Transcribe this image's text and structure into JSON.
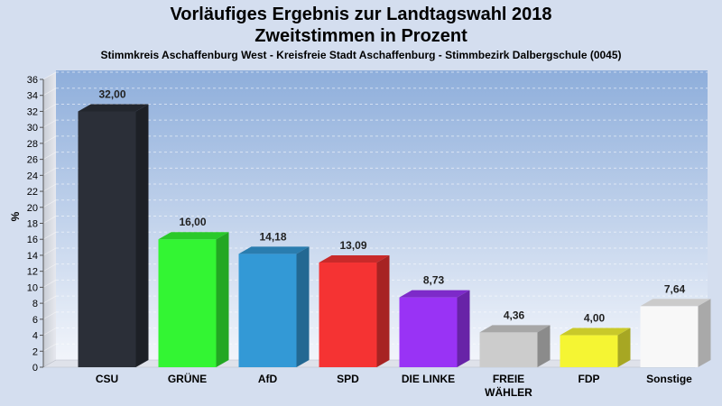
{
  "header": {
    "title_line1": "Vorläufiges Ergebnis zur Landtagswahl 2018",
    "title_line2": "Zweitstimmen in Prozent",
    "subtitle": "Stimmkreis Aschaffenburg West - Kreisfreie Stadt Aschaffenburg - Stimmbezirk Dalbergschule (0045)"
  },
  "chart_data": {
    "type": "bar",
    "title": "Vorläufiges Ergebnis zur Landtagswahl 2018 Zweitstimmen in Prozent",
    "subtitle": "Stimmkreis Aschaffenburg West - Kreisfreie Stadt Aschaffenburg - Stimmbezirk Dalbergschule (0045)",
    "xlabel": "",
    "ylabel": "%",
    "ylim": [
      0,
      36
    ],
    "yticks": [
      0,
      2,
      4,
      6,
      8,
      10,
      12,
      14,
      16,
      18,
      20,
      22,
      24,
      26,
      28,
      30,
      32,
      34,
      36
    ],
    "grid": true,
    "categories": [
      "CSU",
      "GRÜNE",
      "AfD",
      "SPD",
      "DIE LINKE",
      "FREIE WÄHLER",
      "FDP",
      "Sonstige"
    ],
    "category_labels": [
      [
        "CSU"
      ],
      [
        "GRÜNE"
      ],
      [
        "AfD"
      ],
      [
        "SPD"
      ],
      [
        "DIE LINKE"
      ],
      [
        "FREIE",
        "WÄHLER"
      ],
      [
        "FDP"
      ],
      [
        "Sonstige"
      ]
    ],
    "values": [
      32.0,
      16.0,
      14.18,
      13.09,
      8.73,
      4.36,
      4.0,
      7.64
    ],
    "value_labels": [
      "32,00",
      "16,00",
      "14,18",
      "13,09",
      "8,73",
      "4,36",
      "4,00",
      "7,64"
    ],
    "colors": [
      "#2b2f38",
      "#33f533",
      "#3399d6",
      "#f53333",
      "#9933f5",
      "#cccccc",
      "#f5f533",
      "#f8f8f8"
    ]
  }
}
